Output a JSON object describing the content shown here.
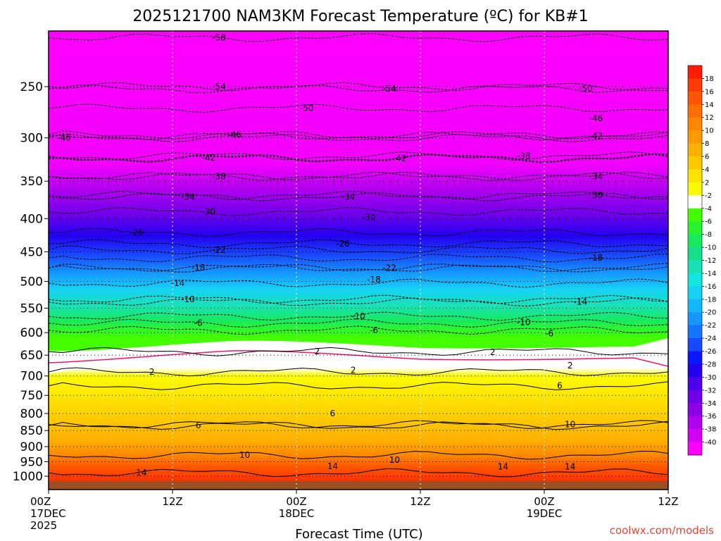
{
  "title": "2025121700 NAM3KM Forecast Temperature (ºC) for KB#1",
  "credit": "coolwx.com/models",
  "chart_data": {
    "type": "heatmap",
    "title": "2025121700 NAM3KM Forecast Temperature (ºC) for KB#1",
    "xlabel": "Forecast Time (UTC)",
    "ylabel": "",
    "x_ticks": [
      {
        "hour": 0,
        "lines": [
          "00Z",
          "17DEC",
          "2025"
        ]
      },
      {
        "hour": 12,
        "lines": [
          "12Z"
        ]
      },
      {
        "hour": 24,
        "lines": [
          "00Z",
          "18DEC"
        ]
      },
      {
        "hour": 36,
        "lines": [
          "12Z"
        ]
      },
      {
        "hour": 48,
        "lines": [
          "00Z",
          "19DEC"
        ]
      },
      {
        "hour": 60,
        "lines": [
          "12Z"
        ]
      }
    ],
    "x_range_hours": [
      0,
      60
    ],
    "y_axis": "pressure (hPa), log scale, inverted",
    "y_ticks": [
      250,
      300,
      350,
      400,
      450,
      500,
      550,
      600,
      650,
      700,
      750,
      800,
      850,
      900,
      950,
      1000
    ],
    "colorbar_ticks": [
      18,
      16,
      14,
      12,
      10,
      8,
      6,
      4,
      2,
      -2,
      -4,
      -6,
      -8,
      -10,
      -12,
      -14,
      -16,
      -18,
      -20,
      -22,
      -24,
      -26,
      -28,
      -30,
      -32,
      -34,
      -36,
      -38,
      -40
    ],
    "colorbar_colors": [
      "#ff1c00",
      "#ff3a00",
      "#ff5500",
      "#ff6e00",
      "#ff8600",
      "#ff9b00",
      "#ffb000",
      "#ffc800",
      "#ffe300",
      "#fbfb00",
      "#ffffff",
      "#44ff00",
      "#27f32f",
      "#18ea5f",
      "#14e08c",
      "#18e1b6",
      "#12e6de",
      "#16d2f5",
      "#14b6ff",
      "#1597ff",
      "#1774ff",
      "#1a48ff",
      "#0b18ff",
      "#2200ee",
      "#4e00ea",
      "#6e00ea",
      "#8c00ea",
      "#b000ee",
      "#d400f4",
      "#ff00ff"
    ],
    "series": [
      {
        "level": -58,
        "hours": [
          16.5
        ],
        "pressures": [
          210
        ]
      },
      {
        "level": -54,
        "hours": [
          16.5,
          33
        ],
        "pressures": [
          250,
          252
        ]
      },
      {
        "level": -50,
        "hours": [
          25,
          52
        ],
        "pressures": [
          270,
          252
        ]
      },
      {
        "level": -46,
        "hours": [
          1.5,
          18,
          53
        ],
        "pressures": [
          300,
          297,
          280
        ]
      },
      {
        "level": -42,
        "hours": [
          15.5,
          34,
          53
        ],
        "pressures": [
          322,
          323,
          298
        ]
      },
      {
        "level": -38,
        "hours": [
          16.5,
          46
        ],
        "pressures": [
          344,
          320
        ]
      },
      {
        "level": -34,
        "hours": [
          13.5,
          29,
          53
        ],
        "pressures": [
          370,
          370,
          344
        ]
      },
      {
        "level": -30,
        "hours": [
          15.5,
          31,
          53
        ],
        "pressures": [
          390,
          398,
          368
        ]
      },
      {
        "level": -26,
        "hours": [
          8.5,
          28.5
        ],
        "pressures": [
          420,
          437
        ]
      },
      {
        "level": -22,
        "hours": [
          16.5,
          33
        ],
        "pressures": [
          447,
          477
        ]
      },
      {
        "level": -18,
        "hours": [
          14.5,
          31.5,
          53
        ],
        "pressures": [
          476,
          497,
          460
        ]
      },
      {
        "level": -14,
        "hours": [
          12.5,
          51.5
        ],
        "pressures": [
          503,
          538
        ]
      },
      {
        "level": -10,
        "hours": [
          13.5,
          30,
          46
        ],
        "pressures": [
          533,
          566,
          578
        ]
      },
      {
        "level": -6,
        "hours": [
          14.5,
          31.5,
          48.5
        ],
        "pressures": [
          580,
          595,
          602
        ]
      },
      {
        "level": 2,
        "hours": [
          26,
          43
        ],
        "pressures": [
          642,
          643
        ]
      },
      {
        "level": 2,
        "hours": [
          10,
          29.5,
          50.5
        ],
        "pressures": [
          690,
          686,
          675
        ]
      },
      {
        "level": 6,
        "hours": [
          14.5,
          27.5,
          49.5
        ],
        "pressures": [
          835,
          800,
          725
        ]
      },
      {
        "level": 10,
        "hours": [
          19,
          33.5,
          50.5
        ],
        "pressures": [
          928,
          944,
          832
        ]
      },
      {
        "level": 14,
        "hours": [
          9,
          27.5,
          44,
          50.5
        ],
        "pressures": [
          988,
          965,
          967,
          967
        ]
      }
    ]
  }
}
